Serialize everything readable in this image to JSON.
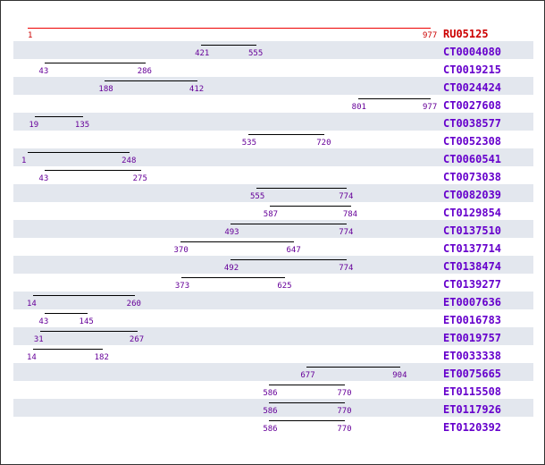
{
  "reference": {
    "id": "RU05125",
    "start": 1,
    "end": 977
  },
  "scale": {
    "min": 1,
    "max": 977
  },
  "colors": {
    "reference_line": "#ee0000",
    "reference_text": "#cc0000",
    "alignment_line": "#000000",
    "coordinate_text": "#660099",
    "name_link": "#6600cc",
    "row_shade": "#e3e7ee"
  },
  "alignments": [
    {
      "id": "CT0004080",
      "start": 421,
      "end": 555
    },
    {
      "id": "CT0019215",
      "start": 43,
      "end": 286
    },
    {
      "id": "CT0024424",
      "start": 188,
      "end": 412
    },
    {
      "id": "CT0027608",
      "start": 801,
      "end": 977
    },
    {
      "id": "CT0038577",
      "start": 19,
      "end": 135
    },
    {
      "id": "CT0052308",
      "start": 535,
      "end": 720
    },
    {
      "id": "CT0060541",
      "start": 1,
      "end": 248
    },
    {
      "id": "CT0073038",
      "start": 43,
      "end": 275
    },
    {
      "id": "CT0082039",
      "start": 555,
      "end": 774
    },
    {
      "id": "CT0129854",
      "start": 587,
      "end": 784
    },
    {
      "id": "CT0137510",
      "start": 493,
      "end": 774
    },
    {
      "id": "CT0137714",
      "start": 370,
      "end": 647
    },
    {
      "id": "CT0138474",
      "start": 492,
      "end": 774
    },
    {
      "id": "CT0139277",
      "start": 373,
      "end": 625
    },
    {
      "id": "ET0007636",
      "start": 14,
      "end": 260
    },
    {
      "id": "ET0016783",
      "start": 43,
      "end": 145
    },
    {
      "id": "ET0019757",
      "start": 31,
      "end": 267
    },
    {
      "id": "ET0033338",
      "start": 14,
      "end": 182
    },
    {
      "id": "ET0075665",
      "start": 677,
      "end": 904
    },
    {
      "id": "ET0115508",
      "start": 586,
      "end": 770
    },
    {
      "id": "ET0117926",
      "start": 586,
      "end": 770
    },
    {
      "id": "ET0120392",
      "start": 586,
      "end": 770
    }
  ]
}
